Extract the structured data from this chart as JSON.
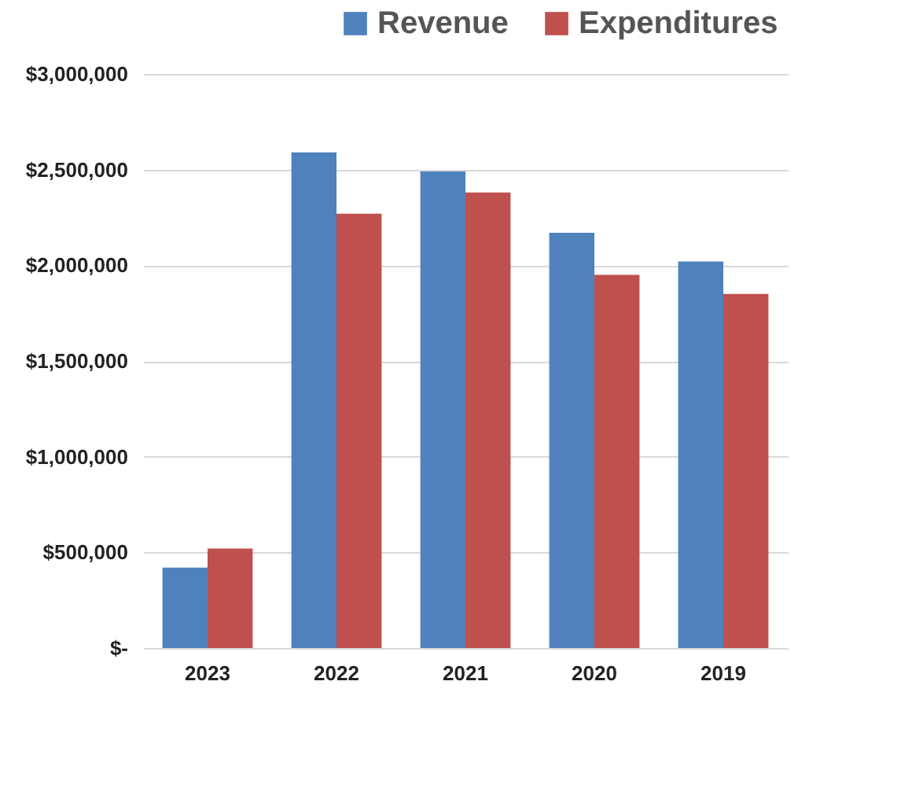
{
  "chart_data": {
    "type": "bar",
    "categories": [
      "2023",
      "2022",
      "2021",
      "2020",
      "2019"
    ],
    "series": [
      {
        "name": "Revenue",
        "color": "#4f81bd",
        "values": [
          420000,
          2590000,
          2490000,
          2170000,
          2020000
        ]
      },
      {
        "name": "Expenditures",
        "color": "#c0504d",
        "values": [
          520000,
          2270000,
          2380000,
          1950000,
          1850000
        ]
      }
    ],
    "ylim": [
      0,
      3000000
    ],
    "yticks": [
      {
        "value": 0,
        "label": "$-"
      },
      {
        "value": 500000,
        "label": "$500,000"
      },
      {
        "value": 1000000,
        "label": "$1,000,000"
      },
      {
        "value": 1500000,
        "label": "$1,500,000"
      },
      {
        "value": 2000000,
        "label": "$2,000,000"
      },
      {
        "value": 2500000,
        "label": "$2,500,000"
      },
      {
        "value": 3000000,
        "label": "$3,000,000"
      }
    ],
    "grid": "y",
    "legend": "top right"
  }
}
